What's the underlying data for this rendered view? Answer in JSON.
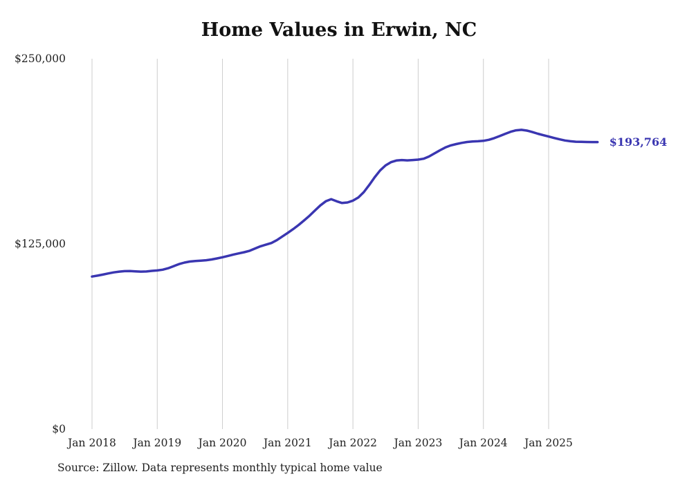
{
  "chart": {
    "title": "Home Values in Erwin, NC",
    "source": "Source: Zillow. Data represents monthly typical home value"
  },
  "chart_data": {
    "type": "line",
    "title": "Home Values in Erwin, NC",
    "series_name": "Monthly typical home value",
    "x_start": "Jan 2018",
    "frequency": "monthly",
    "x_tick_labels": [
      "Jan 2018",
      "Jan 2019",
      "Jan 2020",
      "Jan 2021",
      "Jan 2022",
      "Jan 2023",
      "Jan 2024",
      "Jan 2025"
    ],
    "y_ticks": [
      {
        "value": 250000,
        "label": "$250,000"
      },
      {
        "value": 125000,
        "label": "$125,000"
      },
      {
        "value": 0,
        "label": "$0"
      }
    ],
    "ylim": [
      0,
      250000
    ],
    "grid": "vertical-only",
    "legend": "none",
    "line_color": "#3a36b1",
    "label_color": "#3a36b1",
    "grid_color": "#cccccc",
    "text_color": "#222222",
    "end_label": "$193,764",
    "end_value": 193764,
    "values": [
      103000,
      103600,
      104300,
      105100,
      105800,
      106300,
      106600,
      106700,
      106500,
      106300,
      106400,
      106800,
      107100,
      107600,
      108600,
      110000,
      111400,
      112400,
      113100,
      113500,
      113700,
      114000,
      114500,
      115200,
      116000,
      116900,
      117800,
      118600,
      119400,
      120400,
      121900,
      123400,
      124500,
      125600,
      127500,
      130000,
      132400,
      135000,
      137800,
      140800,
      144000,
      147500,
      151000,
      153800,
      155200,
      153800,
      152600,
      153000,
      154200,
      156400,
      160000,
      164800,
      170000,
      174600,
      178000,
      180200,
      181300,
      181600,
      181400,
      181600,
      181900,
      182500,
      184000,
      186100,
      188200,
      190100,
      191500,
      192400,
      193200,
      193800,
      194100,
      194300,
      194600,
      195300,
      196400,
      197800,
      199300,
      200700,
      201700,
      202000,
      201500,
      200500,
      199400,
      198400,
      197500,
      196500,
      195600,
      194800,
      194300,
      194000,
      193900,
      193800,
      193770,
      193764
    ]
  }
}
